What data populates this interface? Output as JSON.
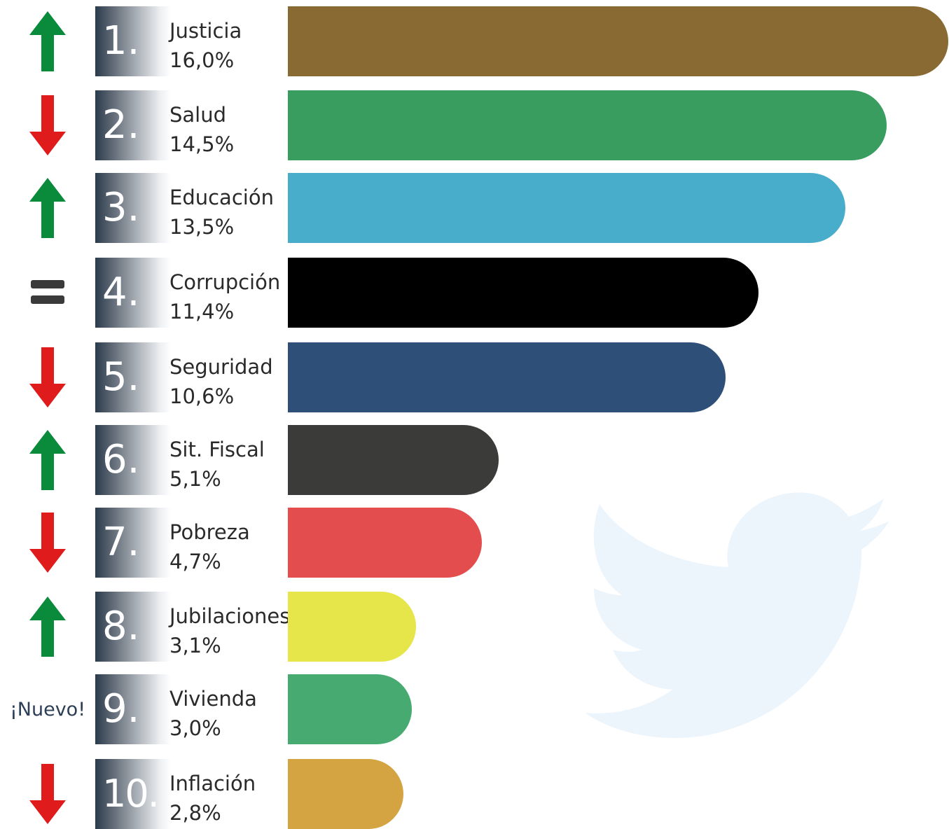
{
  "chart_data": {
    "type": "bar",
    "orientation": "horizontal",
    "categories": [
      "Justicia",
      "Salud",
      "Educación",
      "Corrupción",
      "Seguridad",
      "Sit. Fiscal",
      "Pobreza",
      "Jubilaciones",
      "Vivienda",
      "Inflación"
    ],
    "ranks": [
      "1.",
      "2.",
      "3.",
      "4.",
      "5.",
      "6.",
      "7.",
      "8.",
      "9.",
      "10."
    ],
    "values": [
      16.0,
      14.5,
      13.5,
      11.4,
      10.6,
      5.1,
      4.7,
      3.1,
      3.0,
      2.8
    ],
    "value_labels": [
      "16,0%",
      "14,5%",
      "13,5%",
      "11,4%",
      "10,6%",
      "5,1%",
      "4,7%",
      "3,1%",
      "3,0%",
      "2,8%"
    ],
    "trends": [
      "up",
      "down",
      "up",
      "same",
      "down",
      "up",
      "down",
      "up",
      "new",
      "down"
    ],
    "new_label": "¡Nuevo!",
    "colors": [
      "#8a6a33",
      "#389d5f",
      "#47adcb",
      "#000000",
      "#2e4f77",
      "#3b3b3a",
      "#e34d4d",
      "#e6e54a",
      "#47ab71",
      "#d4a443"
    ],
    "trend_colors": {
      "up": "#0a8a3b",
      "down": "#e01b1b",
      "same": "#3a3a3a"
    },
    "background_icon": "twitter-bird-icon",
    "background_icon_color": "#edf5fc",
    "title": "",
    "xlabel": "",
    "ylabel": "",
    "xlim": [
      0,
      16.0
    ],
    "legend": "none",
    "grid": false
  }
}
